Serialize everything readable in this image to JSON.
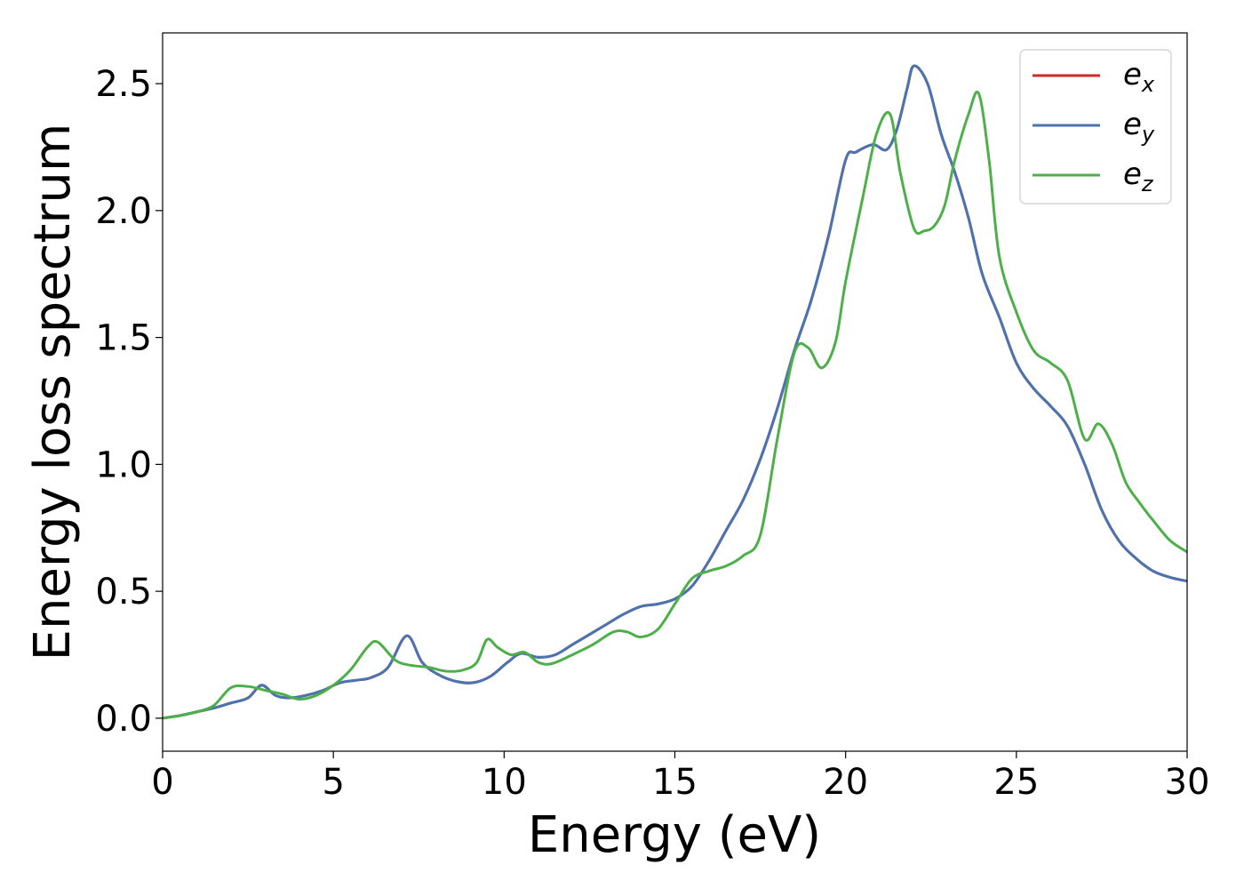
{
  "chart_data": {
    "type": "line",
    "xlabel": "Energy (eV)",
    "ylabel": "Energy loss spectrum",
    "xlim": [
      0,
      30
    ],
    "ylim": [
      -0.13,
      2.7
    ],
    "xticks": [
      0,
      5,
      10,
      15,
      20,
      25,
      30
    ],
    "yticks": [
      0.0,
      0.5,
      1.0,
      1.5,
      2.0,
      2.5
    ],
    "xtick_labels": [
      "0",
      "5",
      "10",
      "15",
      "20",
      "25",
      "30"
    ],
    "ytick_labels": [
      "0.0",
      "0.5",
      "1.0",
      "1.5",
      "2.0",
      "2.5"
    ],
    "grid": false,
    "legend_position": "top-right",
    "series": [
      {
        "name": "e",
        "subscript": "x",
        "color": "#d62728",
        "x": [
          0,
          0.5,
          1,
          1.5,
          2,
          2.5,
          2.9,
          3.3,
          3.7,
          4.2,
          4.7,
          5.2,
          5.7,
          6.1,
          6.6,
          7.15,
          7.6,
          8.1,
          8.6,
          9.1,
          9.6,
          10.1,
          10.5,
          11.0,
          11.5,
          12.0,
          12.5,
          13.0,
          13.5,
          14.0,
          14.5,
          15.0,
          15.5,
          16.0,
          16.5,
          17.0,
          17.5,
          18.0,
          18.5,
          19.0,
          19.5,
          20.0,
          20.3,
          20.8,
          21.2,
          21.5,
          21.8,
          22.0,
          22.4,
          22.8,
          23.2,
          23.6,
          24.0,
          24.5,
          25.0,
          25.5,
          26.0,
          26.5,
          27.0,
          27.5,
          28.0,
          28.5,
          29.0,
          29.5,
          30.0
        ],
        "y": [
          0.0,
          0.01,
          0.025,
          0.04,
          0.06,
          0.08,
          0.13,
          0.09,
          0.08,
          0.09,
          0.11,
          0.14,
          0.15,
          0.16,
          0.2,
          0.325,
          0.22,
          0.17,
          0.145,
          0.14,
          0.165,
          0.22,
          0.255,
          0.24,
          0.25,
          0.29,
          0.33,
          0.37,
          0.41,
          0.44,
          0.45,
          0.47,
          0.52,
          0.62,
          0.74,
          0.86,
          1.02,
          1.22,
          1.45,
          1.65,
          1.9,
          2.2,
          2.23,
          2.26,
          2.24,
          2.32,
          2.48,
          2.57,
          2.5,
          2.3,
          2.15,
          1.97,
          1.75,
          1.58,
          1.4,
          1.3,
          1.23,
          1.15,
          1.0,
          0.82,
          0.7,
          0.63,
          0.58,
          0.555,
          0.54
        ]
      },
      {
        "name": "e",
        "subscript": "y",
        "color": "#4a74b0",
        "x": [
          0,
          0.5,
          1,
          1.5,
          2,
          2.5,
          2.9,
          3.3,
          3.7,
          4.2,
          4.7,
          5.2,
          5.7,
          6.1,
          6.6,
          7.15,
          7.6,
          8.1,
          8.6,
          9.1,
          9.6,
          10.1,
          10.5,
          11.0,
          11.5,
          12.0,
          12.5,
          13.0,
          13.5,
          14.0,
          14.5,
          15.0,
          15.5,
          16.0,
          16.5,
          17.0,
          17.5,
          18.0,
          18.5,
          19.0,
          19.5,
          20.0,
          20.3,
          20.8,
          21.2,
          21.5,
          21.8,
          22.0,
          22.4,
          22.8,
          23.2,
          23.6,
          24.0,
          24.5,
          25.0,
          25.5,
          26.0,
          26.5,
          27.0,
          27.5,
          28.0,
          28.5,
          29.0,
          29.5,
          30.0
        ],
        "y": [
          0.0,
          0.01,
          0.025,
          0.04,
          0.06,
          0.08,
          0.13,
          0.09,
          0.08,
          0.09,
          0.11,
          0.14,
          0.15,
          0.16,
          0.2,
          0.325,
          0.22,
          0.17,
          0.145,
          0.14,
          0.165,
          0.22,
          0.255,
          0.24,
          0.25,
          0.29,
          0.33,
          0.37,
          0.41,
          0.44,
          0.45,
          0.47,
          0.52,
          0.62,
          0.74,
          0.86,
          1.02,
          1.22,
          1.45,
          1.65,
          1.9,
          2.2,
          2.23,
          2.26,
          2.24,
          2.32,
          2.48,
          2.57,
          2.5,
          2.3,
          2.15,
          1.97,
          1.75,
          1.58,
          1.4,
          1.3,
          1.23,
          1.15,
          1.0,
          0.82,
          0.7,
          0.63,
          0.58,
          0.555,
          0.54
        ]
      },
      {
        "name": "e",
        "subscript": "z",
        "color": "#4daf4a",
        "x": [
          0,
          0.5,
          1,
          1.5,
          2,
          2.5,
          3.0,
          3.5,
          4.0,
          4.5,
          5.0,
          5.5,
          6.0,
          6.3,
          6.8,
          7.2,
          7.8,
          8.3,
          8.8,
          9.2,
          9.5,
          9.8,
          10.2,
          10.6,
          11.0,
          11.4,
          12.0,
          12.6,
          13.2,
          13.6,
          14.0,
          14.5,
          15.0,
          15.5,
          16.0,
          16.5,
          17.0,
          17.5,
          18.0,
          18.5,
          18.9,
          19.3,
          19.7,
          20.0,
          20.5,
          20.9,
          21.3,
          21.6,
          22.0,
          22.3,
          22.6,
          22.9,
          23.2,
          23.6,
          23.9,
          24.2,
          24.5,
          25.0,
          25.5,
          26.0,
          26.5,
          27.0,
          27.4,
          27.8,
          28.2,
          28.6,
          29.0,
          29.5,
          30.0
        ],
        "y": [
          0.0,
          0.01,
          0.025,
          0.05,
          0.12,
          0.125,
          0.11,
          0.095,
          0.075,
          0.09,
          0.13,
          0.19,
          0.28,
          0.3,
          0.23,
          0.21,
          0.2,
          0.185,
          0.19,
          0.22,
          0.31,
          0.28,
          0.25,
          0.26,
          0.22,
          0.215,
          0.25,
          0.29,
          0.34,
          0.34,
          0.32,
          0.35,
          0.45,
          0.55,
          0.58,
          0.6,
          0.64,
          0.72,
          1.1,
          1.44,
          1.46,
          1.38,
          1.48,
          1.72,
          2.05,
          2.3,
          2.38,
          2.15,
          1.93,
          1.92,
          1.94,
          2.02,
          2.2,
          2.38,
          2.46,
          2.2,
          1.82,
          1.6,
          1.45,
          1.4,
          1.33,
          1.1,
          1.16,
          1.08,
          0.93,
          0.85,
          0.78,
          0.7,
          0.655
        ]
      }
    ]
  }
}
